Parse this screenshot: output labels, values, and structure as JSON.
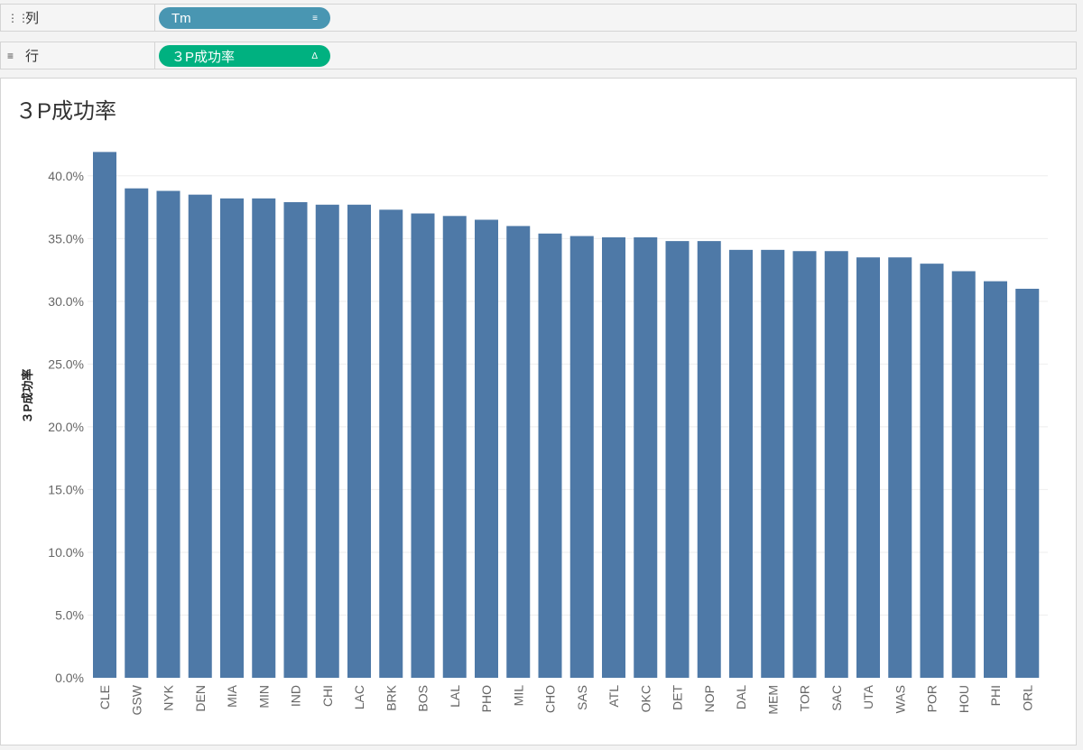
{
  "shelves": {
    "columns": {
      "label": "列",
      "icon": "columns-icon",
      "pill_label": "Tm",
      "pill_icon": "sort-descending-icon"
    },
    "rows": {
      "label": "行",
      "icon": "rows-icon",
      "pill_label": "３P成功率",
      "pill_icon": "delta-icon"
    }
  },
  "colors": {
    "bar": "#4e79a7",
    "dimension_pill": "#4996b2",
    "measure_pill": "#00b180"
  },
  "chart_data": {
    "type": "bar",
    "title": "３P成功率",
    "ylabel": "３P成功率",
    "xlabel": "",
    "ylim": [
      0,
      0.42
    ],
    "yticks": [
      "0.0%",
      "5.0%",
      "10.0%",
      "15.0%",
      "20.0%",
      "25.0%",
      "30.0%",
      "35.0%",
      "40.0%"
    ],
    "grid": true,
    "categories": [
      "CLE",
      "GSW",
      "NYK",
      "DEN",
      "MIA",
      "MIN",
      "IND",
      "CHI",
      "LAC",
      "BRK",
      "BOS",
      "LAL",
      "PHO",
      "MIL",
      "CHO",
      "SAS",
      "ATL",
      "OKC",
      "DET",
      "NOP",
      "DAL",
      "MEM",
      "TOR",
      "SAC",
      "UTA",
      "WAS",
      "POR",
      "HOU",
      "PHI",
      "ORL"
    ],
    "values": [
      0.419,
      0.39,
      0.388,
      0.385,
      0.382,
      0.382,
      0.379,
      0.377,
      0.377,
      0.373,
      0.37,
      0.368,
      0.365,
      0.36,
      0.354,
      0.352,
      0.351,
      0.351,
      0.348,
      0.348,
      0.341,
      0.341,
      0.34,
      0.34,
      0.335,
      0.335,
      0.33,
      0.324,
      0.316,
      0.31
    ]
  }
}
